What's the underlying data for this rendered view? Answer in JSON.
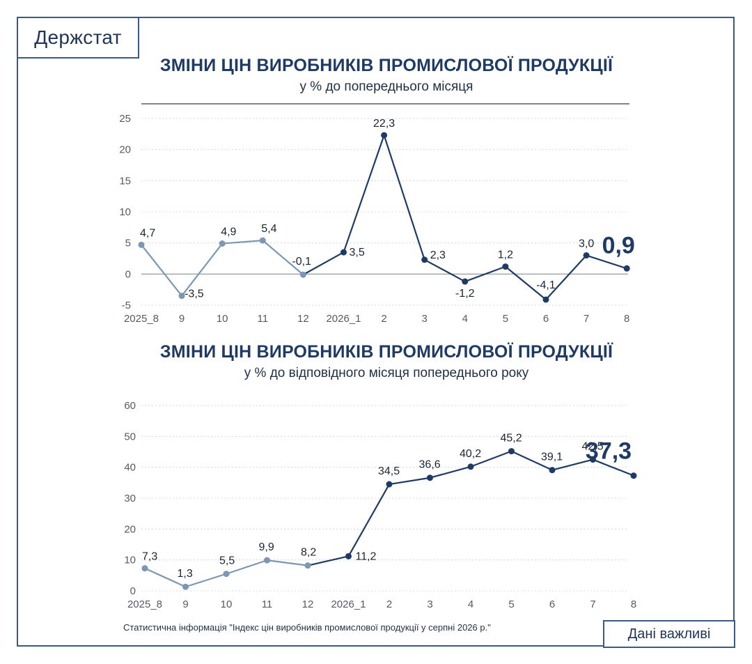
{
  "header": {
    "brand": "Держстат"
  },
  "footer": {
    "source_note": "Статистична інформація \"Індекс цін виробників промислової продукції у серпні 2026 р.\"",
    "badge": "Дані важливі"
  },
  "colors": {
    "early": "#7b97b3",
    "late": "#1f3b63",
    "grid": "#c8cdd4",
    "axis": "#555b63"
  },
  "chart_data": [
    {
      "type": "line",
      "title": "ЗМІНИ ЦІН ВИРОБНИКІВ ПРОМИСЛОВОЇ ПРОДУКЦІЇ",
      "subtitle": "у % до попереднього місяця",
      "categories": [
        "2025_8",
        "9",
        "10",
        "11",
        "12",
        "2026_1",
        "2",
        "3",
        "4",
        "5",
        "6",
        "7",
        "8"
      ],
      "values": [
        4.7,
        -3.5,
        4.9,
        5.4,
        -0.1,
        3.5,
        22.3,
        2.3,
        -1.2,
        1.2,
        -4.1,
        3.0,
        0.9
      ],
      "labels": [
        "4,7",
        "-3,5",
        "4,9",
        "5,4",
        "-0,1",
        "3,5",
        "22,3",
        "2,3",
        "-1,2",
        "1,2",
        "-4,1",
        "3,0",
        "0,9"
      ],
      "ylim": [
        -5,
        25
      ],
      "yticks": [
        "-5",
        "0",
        "5",
        "10",
        "15",
        "20",
        "25"
      ],
      "highlight_last": true,
      "grid": true
    },
    {
      "type": "line",
      "title": "ЗМІНИ ЦІН ВИРОБНИКІВ ПРОМИСЛОВОЇ ПРОДУКЦІЇ",
      "subtitle": "у % до відповідного місяця попереднього року",
      "categories": [
        "2025_8",
        "9",
        "10",
        "11",
        "12",
        "2026_1",
        "2",
        "3",
        "4",
        "5",
        "6",
        "7",
        "8"
      ],
      "values": [
        7.3,
        1.3,
        5.5,
        9.9,
        8.2,
        11.2,
        34.5,
        36.6,
        40.2,
        45.2,
        39.1,
        42.5,
        37.3
      ],
      "labels": [
        "7,3",
        "1,3",
        "5,5",
        "9,9",
        "8,2",
        "11,2",
        "34,5",
        "36,6",
        "40,2",
        "45,2",
        "39,1",
        "42,5",
        "37,3"
      ],
      "ylim": [
        0,
        60
      ],
      "yticks": [
        "0",
        "10",
        "20",
        "30",
        "40",
        "50",
        "60"
      ],
      "highlight_last": true,
      "grid": true
    }
  ]
}
